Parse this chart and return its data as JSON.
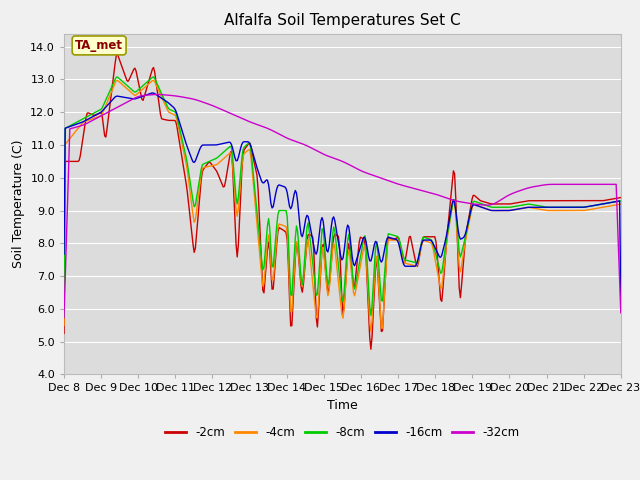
{
  "title": "Alfalfa Soil Temperatures Set C",
  "ylabel": "Soil Temperature (C)",
  "xlabel": "Time",
  "ylim": [
    4.0,
    14.4
  ],
  "yticks": [
    4.0,
    5.0,
    6.0,
    7.0,
    8.0,
    9.0,
    10.0,
    11.0,
    12.0,
    13.0,
    14.0
  ],
  "colors": {
    "-2cm": "#cc0000",
    "-4cm": "#ff8800",
    "-8cm": "#00cc00",
    "-16cm": "#0000cc",
    "-32cm": "#cc00cc"
  },
  "legend_labels": [
    "-2cm",
    "-4cm",
    "-8cm",
    "-16cm",
    "-32cm"
  ],
  "ta_met_label": "TA_met",
  "xtick_labels": [
    "Dec 8",
    "Dec 9",
    "Dec 10",
    "Dec 11",
    "Dec 12",
    "Dec 13",
    "Dec 14",
    "Dec 15",
    "Dec 16",
    "Dec 17",
    "Dec 18",
    "Dec 19",
    "Dec 20",
    "Dec 21",
    "Dec 22",
    "Dec 23"
  ],
  "fig_bg": "#f0f0f0",
  "plot_bg": "#dcdcdc",
  "grid_color": "#ffffff"
}
